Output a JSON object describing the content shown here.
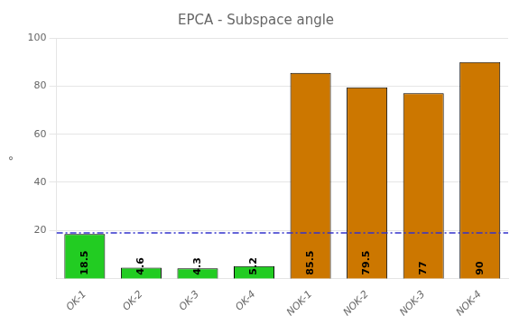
{
  "chart_data": {
    "type": "bar",
    "title": "EPCA - Subspace angle",
    "categories": [
      "OK-1",
      "OK-2",
      "OK-3",
      "OK-4",
      "NOK-1",
      "NOK-2",
      "NOK-3",
      "NOK-4"
    ],
    "values": [
      18.5,
      4.6,
      4.3,
      5.2,
      85.5,
      79.5,
      77,
      90
    ],
    "colors": [
      "#22cc22",
      "#22cc22",
      "#22cc22",
      "#22cc22",
      "#cc7700",
      "#cc7700",
      "#cc7700",
      "#cc7700"
    ],
    "ylabel": "°",
    "ylim": [
      0,
      100
    ],
    "yticks": [
      20,
      40,
      60,
      80,
      100
    ],
    "grid": true,
    "data_labels": true,
    "threshold": {
      "value": 19.0,
      "color": "#3333cc",
      "line_style": "dashdot"
    }
  }
}
